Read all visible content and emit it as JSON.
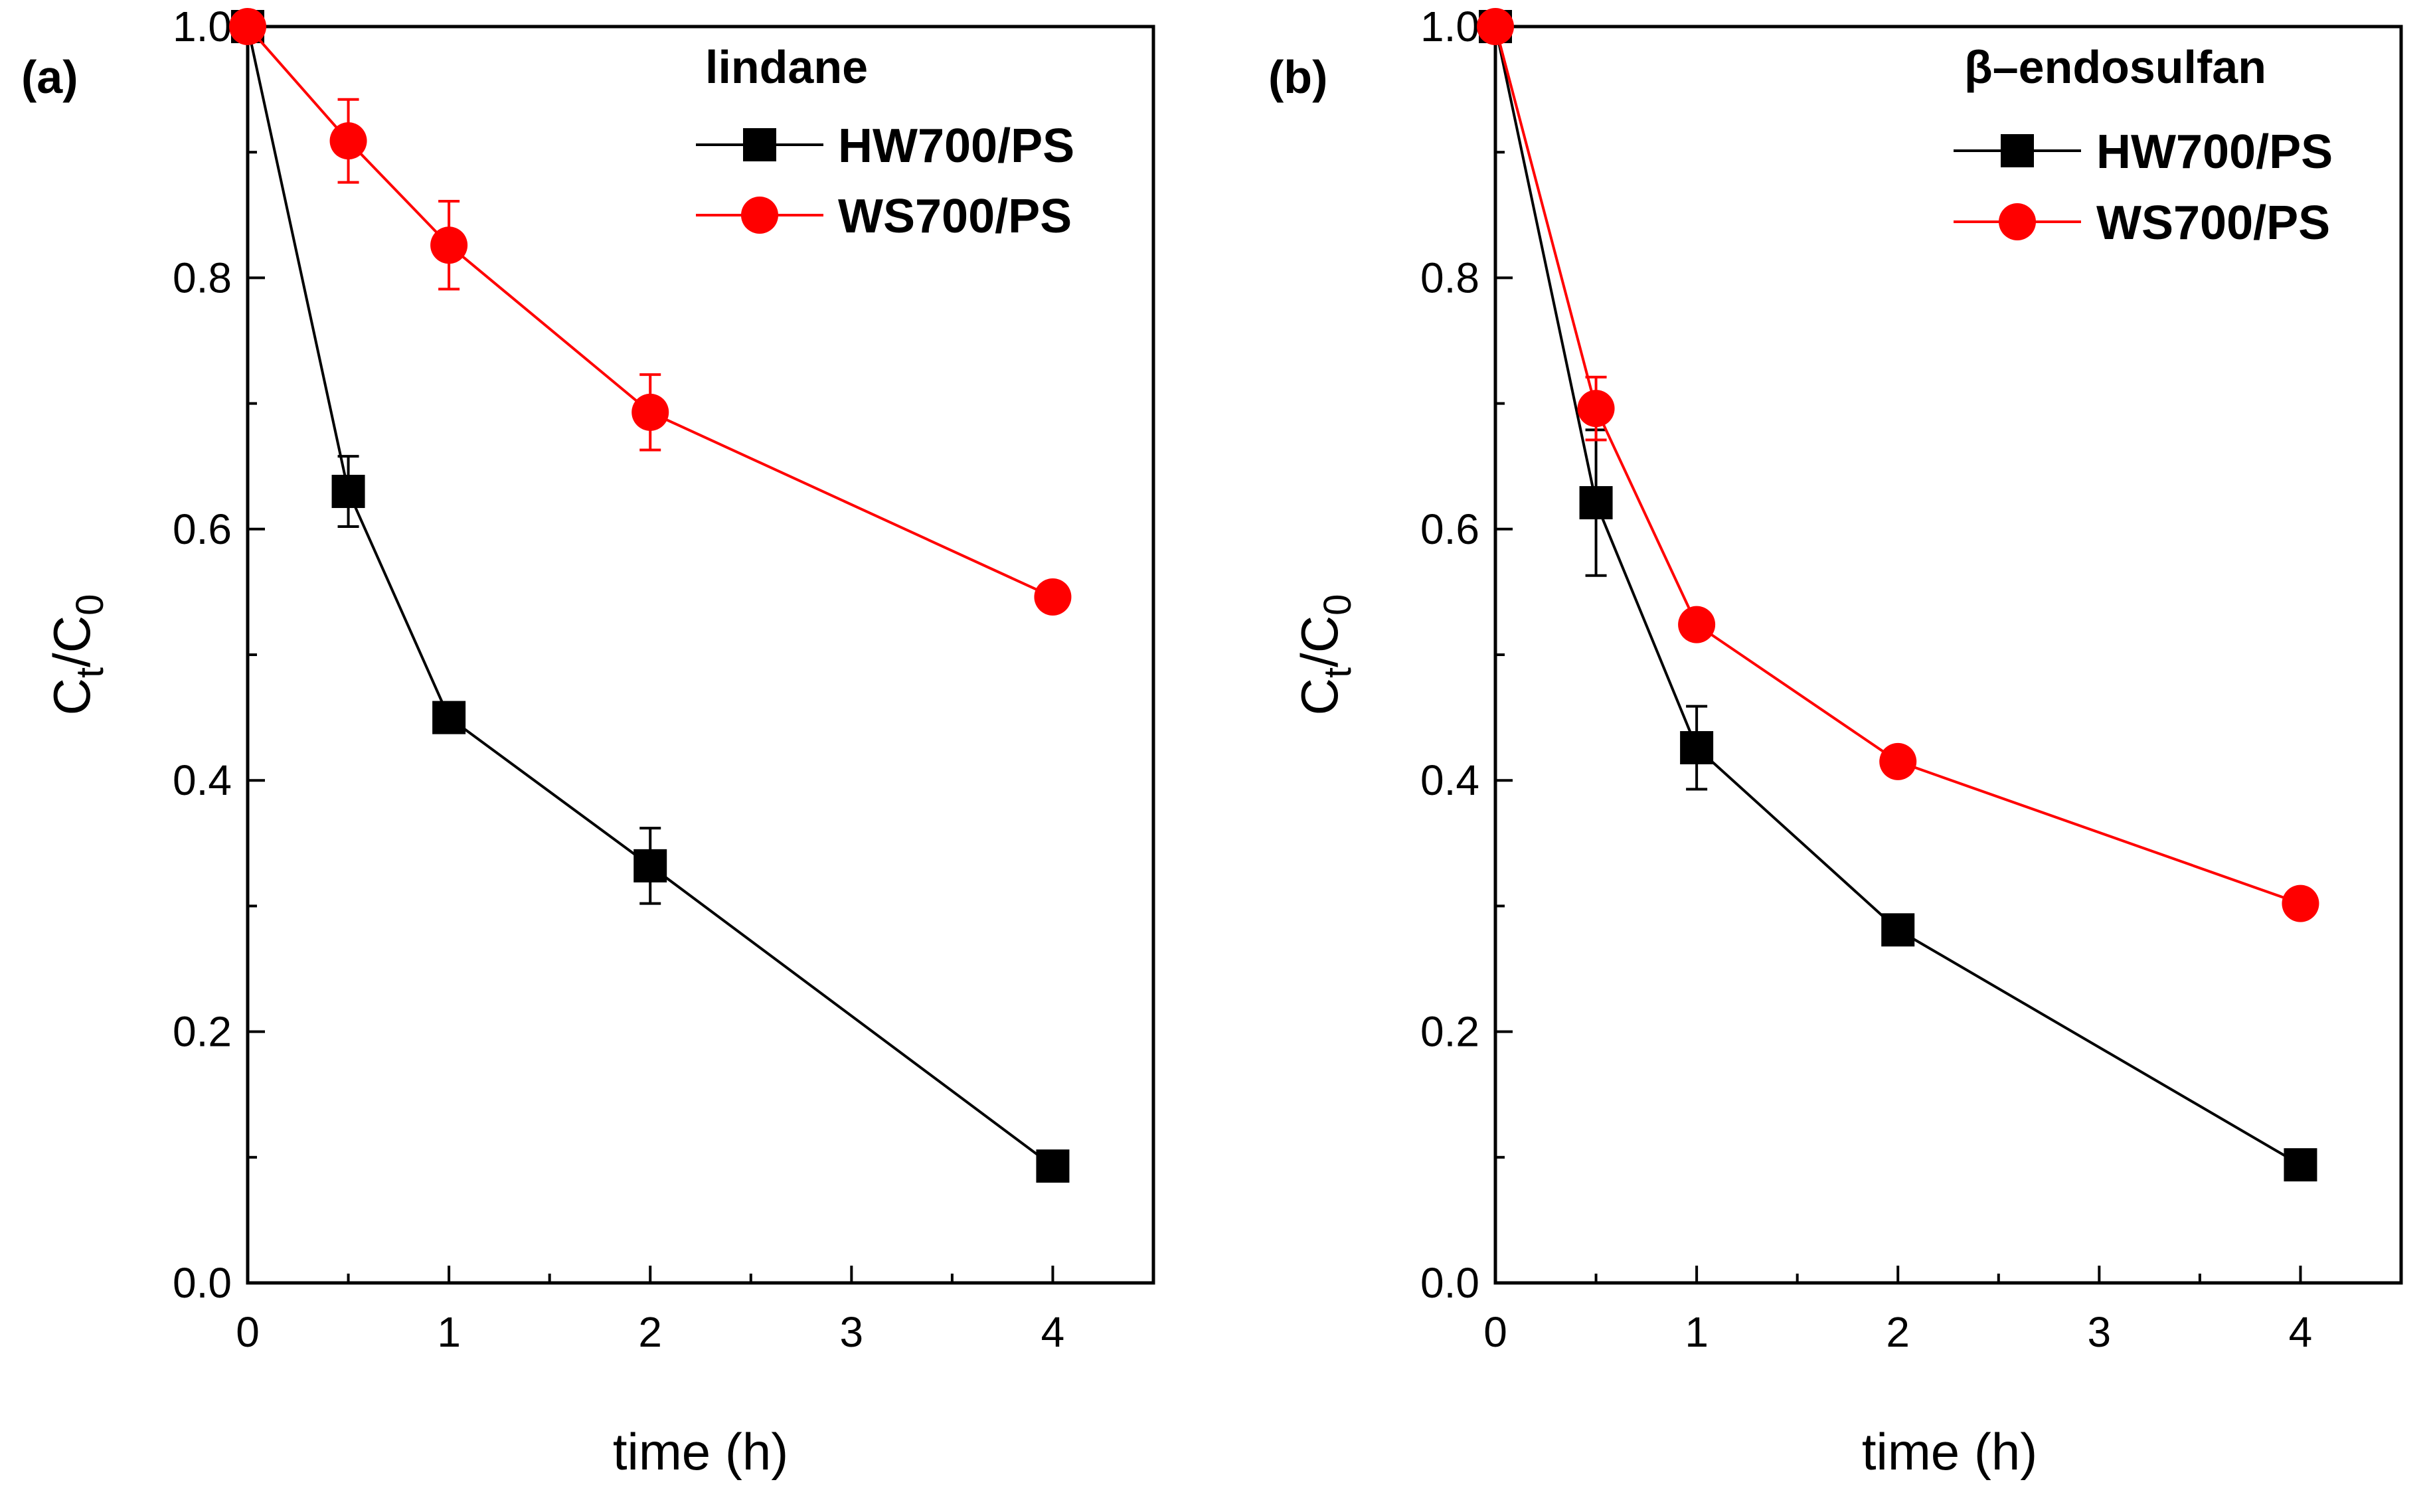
{
  "chart_data": [
    {
      "type": "line",
      "panel_label": "(a)",
      "legend_title": "lindane",
      "xlabel": "time (h)",
      "ylabel": {
        "main": "C",
        "sub1": "t",
        "slash": "/C",
        "sub2": "0"
      },
      "xlim": [
        0,
        4.5
      ],
      "ylim": [
        0,
        1.0
      ],
      "x_ticks": [
        "0",
        "1",
        "2",
        "3",
        "4"
      ],
      "x_tick_values": [
        0,
        1,
        2,
        3,
        4
      ],
      "y_ticks": [
        "0.0",
        "0.2",
        "0.4",
        "0.6",
        "0.8",
        "1.0"
      ],
      "y_tick_values": [
        0,
        0.2,
        0.4,
        0.6,
        0.8,
        1.0
      ],
      "legend_position": "top-right",
      "series": [
        {
          "name": "HW700/PS",
          "color": "#000000",
          "marker": "square",
          "x": [
            0,
            0.5,
            1,
            2,
            4
          ],
          "y": [
            1.0,
            0.63,
            0.45,
            0.332,
            0.093
          ],
          "error": [
            0,
            0.028,
            0.01,
            0.03,
            0.005
          ]
        },
        {
          "name": "WS700/PS",
          "color": "#ff0000",
          "marker": "circle",
          "x": [
            0,
            0.5,
            1,
            2,
            4
          ],
          "y": [
            1.0,
            0.909,
            0.826,
            0.693,
            0.546
          ],
          "error": [
            0,
            0.033,
            0.035,
            0.03,
            0.005
          ]
        }
      ]
    },
    {
      "type": "line",
      "panel_label": "(b)",
      "legend_title": "β–endosulfan",
      "xlabel": "time (h)",
      "ylabel": {
        "main": "C",
        "sub1": "t",
        "slash": "/C",
        "sub2": "0"
      },
      "xlim": [
        0,
        4.5
      ],
      "ylim": [
        0,
        1.0
      ],
      "x_ticks": [
        "0",
        "1",
        "2",
        "3",
        "4"
      ],
      "x_tick_values": [
        0,
        1,
        2,
        3,
        4
      ],
      "y_ticks": [
        "0.0",
        "0.2",
        "0.4",
        "0.6",
        "0.8",
        "1.0"
      ],
      "y_tick_values": [
        0,
        0.2,
        0.4,
        0.6,
        0.8,
        1.0
      ],
      "legend_position": "top-right",
      "series": [
        {
          "name": "HW700/PS",
          "color": "#000000",
          "marker": "square",
          "x": [
            0,
            0.5,
            1,
            2,
            4
          ],
          "y": [
            1.0,
            0.621,
            0.426,
            0.281,
            0.094
          ],
          "error": [
            0,
            0.058,
            0.033,
            0.005,
            0.005
          ]
        },
        {
          "name": "WS700/PS",
          "color": "#ff0000",
          "marker": "circle",
          "x": [
            0,
            0.5,
            1,
            2,
            4
          ],
          "y": [
            1.0,
            0.696,
            0.524,
            0.415,
            0.302
          ],
          "error": [
            0,
            0.025,
            0.005,
            0.005,
            0.005
          ]
        }
      ]
    }
  ]
}
